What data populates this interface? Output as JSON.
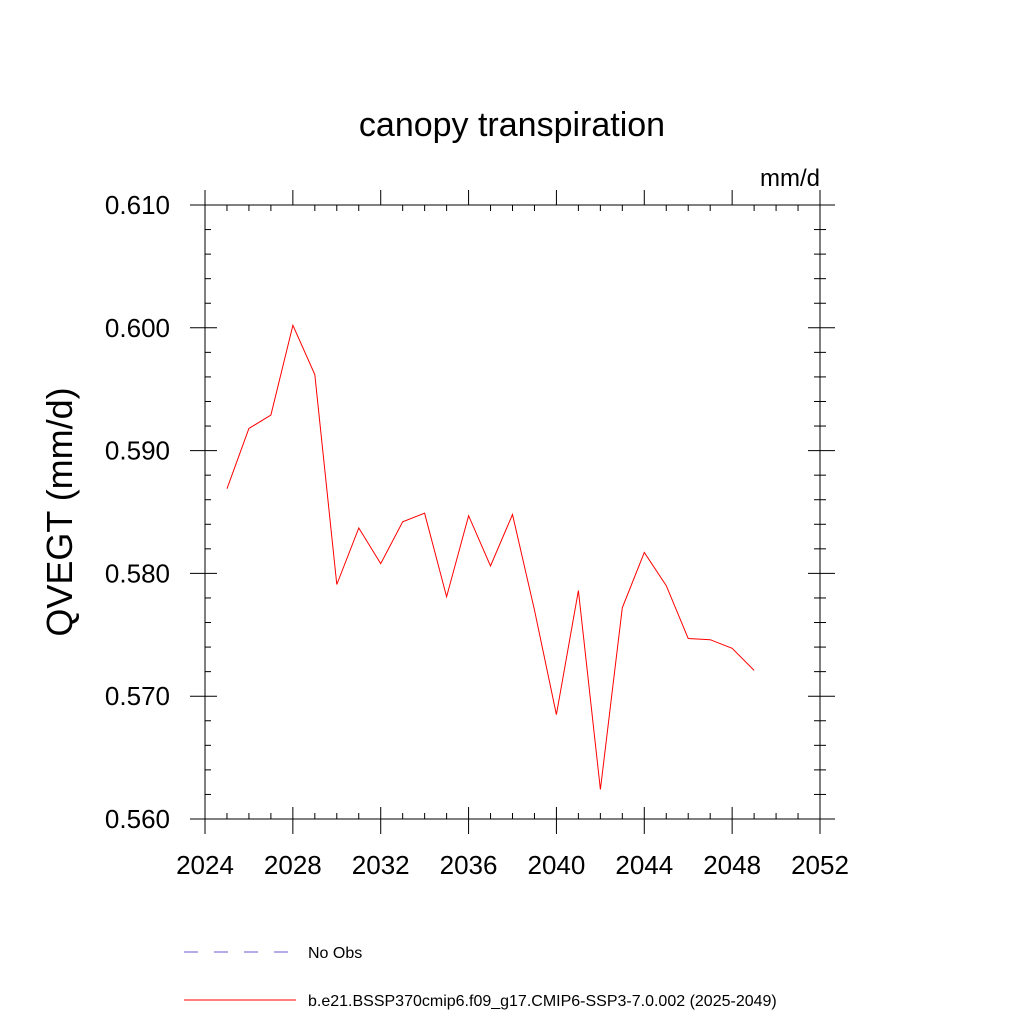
{
  "chart_data": {
    "type": "line",
    "title": "canopy transpiration",
    "units": "mm/d",
    "ylabel": "QVEGT  (mm/d)",
    "xlabel": "",
    "xlim": [
      2024,
      2052
    ],
    "ylim": [
      0.56,
      0.61
    ],
    "x_ticks": [
      2024,
      2028,
      2032,
      2036,
      2040,
      2044,
      2048,
      2052
    ],
    "x_tick_labels": [
      "2024",
      "2028",
      "2032",
      "2036",
      "2040",
      "2044",
      "2048",
      "2052"
    ],
    "y_ticks": [
      0.56,
      0.57,
      0.58,
      0.59,
      0.6,
      0.61
    ],
    "y_tick_labels": [
      "0.560",
      "0.570",
      "0.580",
      "0.590",
      "0.600",
      "0.610"
    ],
    "grid": false,
    "legend_position": "bottom",
    "series": [
      {
        "name": "b.e21.BSSP370cmip6.f09_g17.CMIP6-SSP3-7.0.002 (2025-2049)",
        "color": "#ff0000",
        "dash": "solid",
        "x": [
          2025,
          2026,
          2027,
          2028,
          2029,
          2030,
          2031,
          2032,
          2033,
          2034,
          2035,
          2036,
          2037,
          2038,
          2039,
          2040,
          2041,
          2042,
          2043,
          2044,
          2045,
          2046,
          2047,
          2048,
          2049
        ],
        "values": [
          0.5869,
          0.5918,
          0.5929,
          0.6002,
          0.5962,
          0.5791,
          0.5837,
          0.5808,
          0.5842,
          0.5849,
          0.5781,
          0.5847,
          0.5806,
          0.5848,
          0.577,
          0.5685,
          0.5786,
          0.5624,
          0.5772,
          0.5817,
          0.579,
          0.5747,
          0.5746,
          0.5739,
          0.5721
        ]
      }
    ],
    "legend": [
      {
        "label": "No Obs",
        "color": "#6a5acd",
        "dash": "dashed"
      },
      {
        "label": "b.e21.BSSP370cmip6.f09_g17.CMIP6-SSP3-7.0.002 (2025-2049)",
        "color": "#ff0000",
        "dash": "solid"
      }
    ]
  }
}
